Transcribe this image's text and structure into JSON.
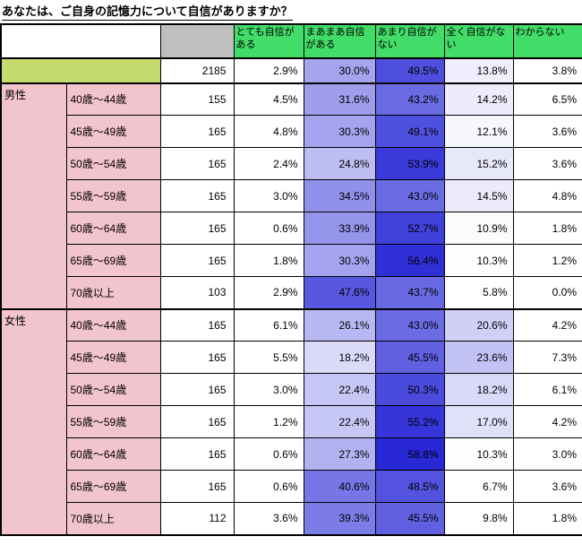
{
  "colors": {
    "header_green": "#42DC69",
    "total_row_green": "#C6DB6E",
    "group_pink": "#F2C4CE",
    "n_header_gray": "#BFBFBF",
    "border_black": "#000000",
    "heat_low": "#FFFFFF",
    "heat_high": "#2828D7"
  },
  "chart_data": {
    "type": "table",
    "title": "あなたは、ご自身の記憶力について自信がありますか？",
    "unit": "%",
    "answer_options": [
      "とても自信がある",
      "まあまあ自信がある",
      "あまり自信がない",
      "全く自信がない",
      "わからない"
    ],
    "total": {
      "n": 2185,
      "values": [
        2.9,
        30.0,
        49.5,
        13.8,
        3.8
      ]
    },
    "groups": [
      {
        "label": "男性",
        "rows": [
          {
            "age": "40歳～44歳",
            "n": 155,
            "values": [
              4.5,
              31.6,
              43.2,
              14.2,
              6.5
            ]
          },
          {
            "age": "45歳～49歳",
            "n": 165,
            "values": [
              4.8,
              30.3,
              49.1,
              12.1,
              3.6
            ]
          },
          {
            "age": "50歳～54歳",
            "n": 165,
            "values": [
              2.4,
              24.8,
              53.9,
              15.2,
              3.6
            ]
          },
          {
            "age": "55歳～59歳",
            "n": 165,
            "values": [
              3.0,
              34.5,
              43.0,
              14.5,
              4.8
            ]
          },
          {
            "age": "60歳～64歳",
            "n": 165,
            "values": [
              0.6,
              33.9,
              52.7,
              10.9,
              1.8
            ]
          },
          {
            "age": "65歳～69歳",
            "n": 165,
            "values": [
              1.8,
              30.3,
              56.4,
              10.3,
              1.2
            ]
          },
          {
            "age": "70歳以上",
            "n": 103,
            "values": [
              2.9,
              47.6,
              43.7,
              5.8,
              0.0
            ]
          }
        ]
      },
      {
        "label": "女性",
        "rows": [
          {
            "age": "40歳～44歳",
            "n": 165,
            "values": [
              6.1,
              26.1,
              43.0,
              20.6,
              4.2
            ]
          },
          {
            "age": "45歳～49歳",
            "n": 165,
            "values": [
              5.5,
              18.2,
              45.5,
              23.6,
              7.3
            ]
          },
          {
            "age": "50歳～54歳",
            "n": 165,
            "values": [
              3.0,
              22.4,
              50.3,
              18.2,
              6.1
            ]
          },
          {
            "age": "55歳～59歳",
            "n": 165,
            "values": [
              1.2,
              22.4,
              55.2,
              17.0,
              4.2
            ]
          },
          {
            "age": "60歳～64歳",
            "n": 165,
            "values": [
              0.6,
              27.3,
              58.8,
              10.3,
              3.0
            ]
          },
          {
            "age": "65歳～69歳",
            "n": 165,
            "values": [
              0.6,
              40.6,
              48.5,
              6.7,
              3.6
            ]
          },
          {
            "age": "70歳以上",
            "n": 112,
            "values": [
              3.6,
              39.3,
              45.5,
              9.8,
              1.8
            ]
          }
        ]
      }
    ],
    "layout": {
      "heatmap": "percent cells shaded white (low) to deep blue (high)",
      "grid": "on"
    }
  }
}
